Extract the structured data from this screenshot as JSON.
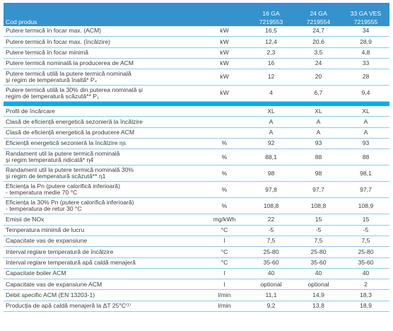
{
  "table": {
    "header": {
      "label": "Cod produs",
      "models": [
        "16 GA",
        "24 GA",
        "33 GA VES"
      ],
      "codes": [
        "7219553",
        "7219554",
        "7219555"
      ]
    },
    "group1": [
      {
        "label": "Putere termică în focar max. (ACM)",
        "unit": "kW",
        "v": [
          "16,5",
          "24,7",
          "34"
        ]
      },
      {
        "label": "Putere termică în focar max. (încălzire)",
        "unit": "kW",
        "v": [
          "12,4",
          "20,6",
          "28,9"
        ]
      },
      {
        "label": "Putere termică în focar minimă",
        "unit": "kW",
        "v": [
          "2,3",
          "3,5",
          "4,8"
        ]
      },
      {
        "label": "Putere termică nominală la producerea de ACM",
        "unit": "kW",
        "v": [
          "16",
          "24",
          "33"
        ]
      },
      {
        "label1": "Putere termică utilă la putere termică nominală",
        "label2": "și regim de temperatură înaltă* P₄",
        "unit": "kW",
        "v": [
          "12",
          "20",
          "28"
        ]
      },
      {
        "label1": "Putere termică utilă la 30% din puterea nominală și",
        "label2": "regim de temperatură scăzută** P₁",
        "unit": "kW",
        "v": [
          "4",
          "6,7",
          "9,4"
        ]
      }
    ],
    "group2": [
      {
        "label": "Profil de încărcare",
        "unit": "",
        "v": [
          "XL",
          "XL",
          "XL"
        ]
      },
      {
        "label": "Clasă de eficiență energetică sezonieră la încălzire",
        "unit": "",
        "v": [
          "A",
          "A",
          "A"
        ]
      },
      {
        "label": "Clasă de eficiență energetică la producere ACM",
        "unit": "",
        "v": [
          "A",
          "A",
          "A"
        ]
      },
      {
        "label": "Eficiență energetică sezonieră la încălzire ηs",
        "unit": "%",
        "v": [
          "92",
          "93",
          "93"
        ]
      },
      {
        "label1": "Randament util la putere termică nominală",
        "label2": "și regim temperatură ridicată* η4",
        "unit": "%",
        "v": [
          "88,1",
          "88",
          "88"
        ]
      },
      {
        "label1": "Randament util la putere termică nominală 30%",
        "label2": "și regim de temperatură scăzută** η1",
        "unit": "%",
        "v": [
          "98",
          "98",
          "98,1"
        ]
      },
      {
        "label1": "Eficiența la Pn (putere calorifică inferioară)",
        "label2": "- temperatura medie 70 °C",
        "unit": "%",
        "v": [
          "97,8",
          "97,7",
          "97,7"
        ]
      },
      {
        "label1": "Eficiența la 30% Pn (putere calorifică inferioară)",
        "label2": "- temperatura de retur 30 °C",
        "unit": "%",
        "v": [
          "108,8",
          "108,8",
          "108,9"
        ]
      },
      {
        "label": "Emisii de NOx",
        "unit": "mg/kWh",
        "v": [
          "22",
          "15",
          "15"
        ]
      },
      {
        "label": "Temperatura minimă de lucru",
        "unit": "°C",
        "v": [
          "-5",
          "-5",
          "-5"
        ]
      },
      {
        "label": "Capacitate vas de expansiune",
        "unit": "l",
        "v": [
          "7,5",
          "7,5",
          "7,5"
        ]
      },
      {
        "label": "Interval reglare temperatură de încălzire",
        "unit": "°C",
        "v": [
          "25-80",
          "25-80",
          "25-80"
        ]
      },
      {
        "label": "Interval reglare temperatură apă caldă menajeră",
        "unit": "°C",
        "v": [
          "35-60",
          "35-60",
          "35-60"
        ]
      },
      {
        "label": "Capacitate boiler ACM",
        "unit": "l",
        "v": [
          "40",
          "40",
          "40"
        ]
      },
      {
        "label": "Capacitate vas de expansiune ACM",
        "unit": "l",
        "v": [
          "optional",
          "optional",
          "2"
        ]
      },
      {
        "label": "Debit specific ACM (EN 13203-1)",
        "unit": "l/min",
        "v": [
          "11,1",
          "14,9",
          "18,3"
        ]
      },
      {
        "label": "Producția de apă caldă menajeră la ΔT 25°C⁽¹⁾",
        "unit": "l/min",
        "v": [
          "9,2",
          "13,8",
          "18,9"
        ]
      }
    ]
  }
}
